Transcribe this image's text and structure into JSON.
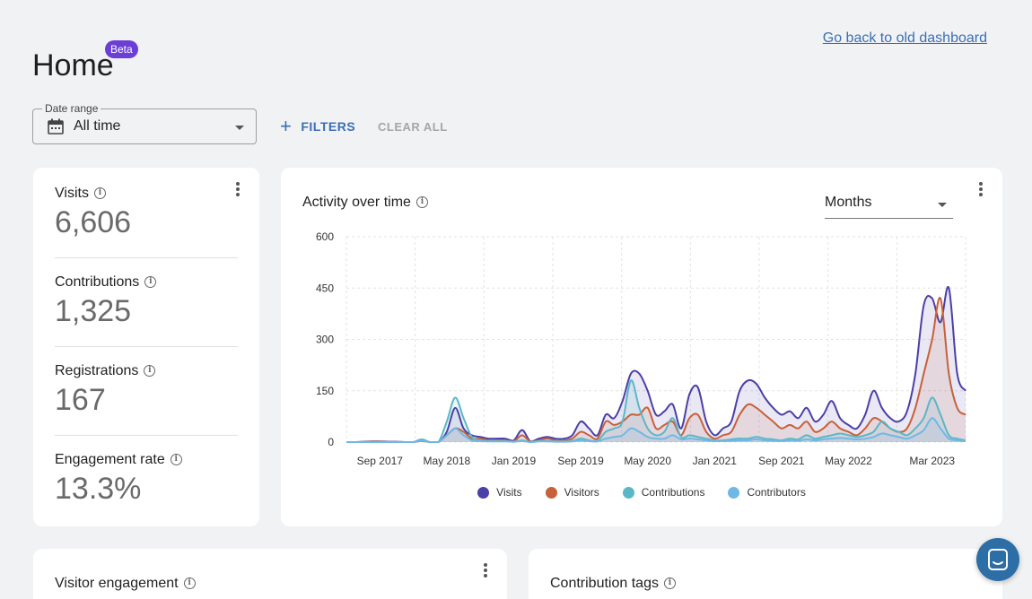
{
  "header": {
    "title": "Home",
    "badge": "Beta",
    "old_dashboard_link": "Go back to old dashboard"
  },
  "toolbar": {
    "date_range_label": "Date range",
    "date_range_value": "All time",
    "filters_label": "FILTERS",
    "clear_all_label": "CLEAR ALL"
  },
  "stats": [
    {
      "label": "Visits",
      "value": "6,606"
    },
    {
      "label": "Contributions",
      "value": "1,325"
    },
    {
      "label": "Registrations",
      "value": "167"
    },
    {
      "label": "Engagement rate",
      "value": "13.3%"
    }
  ],
  "activity": {
    "title": "Activity over time",
    "interval": "Months"
  },
  "colors": {
    "visits": "#4b3fa8",
    "visitors": "#c8603a",
    "contributions": "#5bb7c6",
    "contributors": "#6fb8e6",
    "accent": "#3a6fb5",
    "beta": "#6b3fd6"
  },
  "chart_data": {
    "type": "area",
    "ylim": [
      0,
      600
    ],
    "yticks": [
      "0",
      "150",
      "300",
      "450",
      "600"
    ],
    "x_tick_labels": [
      "Sep 2017",
      "May 2018",
      "Jan 2019",
      "Sep 2019",
      "May 2020",
      "Jan 2021",
      "Sep 2021",
      "May 2022",
      "Mar 2023"
    ],
    "x_tick_index": [
      4,
      12,
      20,
      28,
      36,
      44,
      52,
      60,
      70
    ],
    "series": [
      {
        "name": "Visits",
        "values": [
          0,
          0,
          1,
          2,
          2,
          1,
          1,
          0,
          0,
          5,
          0,
          0,
          30,
          100,
          40,
          20,
          15,
          10,
          10,
          10,
          5,
          35,
          2,
          10,
          15,
          10,
          10,
          20,
          60,
          40,
          20,
          80,
          70,
          120,
          200,
          200,
          150,
          80,
          90,
          110,
          40,
          140,
          160,
          60,
          20,
          40,
          60,
          150,
          180,
          170,
          130,
          100,
          80,
          90,
          70,
          100,
          60,
          80,
          120,
          70,
          50,
          40,
          80,
          150,
          100,
          70,
          60,
          90,
          200,
          400,
          420,
          350,
          450,
          200,
          150
        ]
      },
      {
        "name": "Visitors",
        "values": [
          0,
          0,
          0,
          1,
          1,
          0,
          0,
          0,
          0,
          3,
          0,
          0,
          20,
          40,
          30,
          10,
          10,
          5,
          5,
          5,
          2,
          20,
          1,
          5,
          10,
          5,
          5,
          10,
          30,
          20,
          10,
          60,
          50,
          60,
          80,
          80,
          100,
          40,
          50,
          60,
          20,
          70,
          80,
          30,
          10,
          20,
          30,
          80,
          110,
          100,
          80,
          60,
          40,
          50,
          40,
          60,
          30,
          40,
          60,
          40,
          30,
          20,
          40,
          70,
          60,
          40,
          30,
          40,
          100,
          200,
          300,
          420,
          200,
          100,
          80
        ]
      },
      {
        "name": "Contributions",
        "values": [
          0,
          0,
          0,
          0,
          0,
          0,
          0,
          0,
          0,
          8,
          0,
          0,
          60,
          130,
          70,
          15,
          5,
          3,
          3,
          3,
          1,
          5,
          0,
          3,
          3,
          2,
          2,
          3,
          10,
          5,
          3,
          30,
          40,
          60,
          180,
          100,
          40,
          20,
          30,
          70,
          15,
          20,
          15,
          10,
          5,
          5,
          8,
          10,
          10,
          15,
          10,
          8,
          5,
          10,
          8,
          20,
          10,
          15,
          20,
          25,
          20,
          15,
          20,
          30,
          60,
          40,
          30,
          20,
          40,
          70,
          130,
          80,
          20,
          10,
          5
        ]
      },
      {
        "name": "Contributors",
        "values": [
          0,
          0,
          0,
          0,
          0,
          0,
          0,
          0,
          0,
          4,
          0,
          0,
          20,
          40,
          20,
          5,
          3,
          2,
          2,
          2,
          1,
          3,
          0,
          2,
          2,
          1,
          1,
          2,
          5,
          3,
          2,
          10,
          15,
          20,
          40,
          30,
          15,
          10,
          10,
          20,
          8,
          10,
          8,
          5,
          3,
          3,
          4,
          5,
          5,
          8,
          5,
          4,
          3,
          5,
          4,
          8,
          5,
          8,
          10,
          12,
          10,
          8,
          10,
          15,
          25,
          20,
          15,
          10,
          20,
          35,
          70,
          40,
          10,
          5,
          3
        ]
      }
    ]
  },
  "bottom": {
    "visitor_engagement_title": "Visitor engagement",
    "contribution_tags_title": "Contribution tags"
  }
}
